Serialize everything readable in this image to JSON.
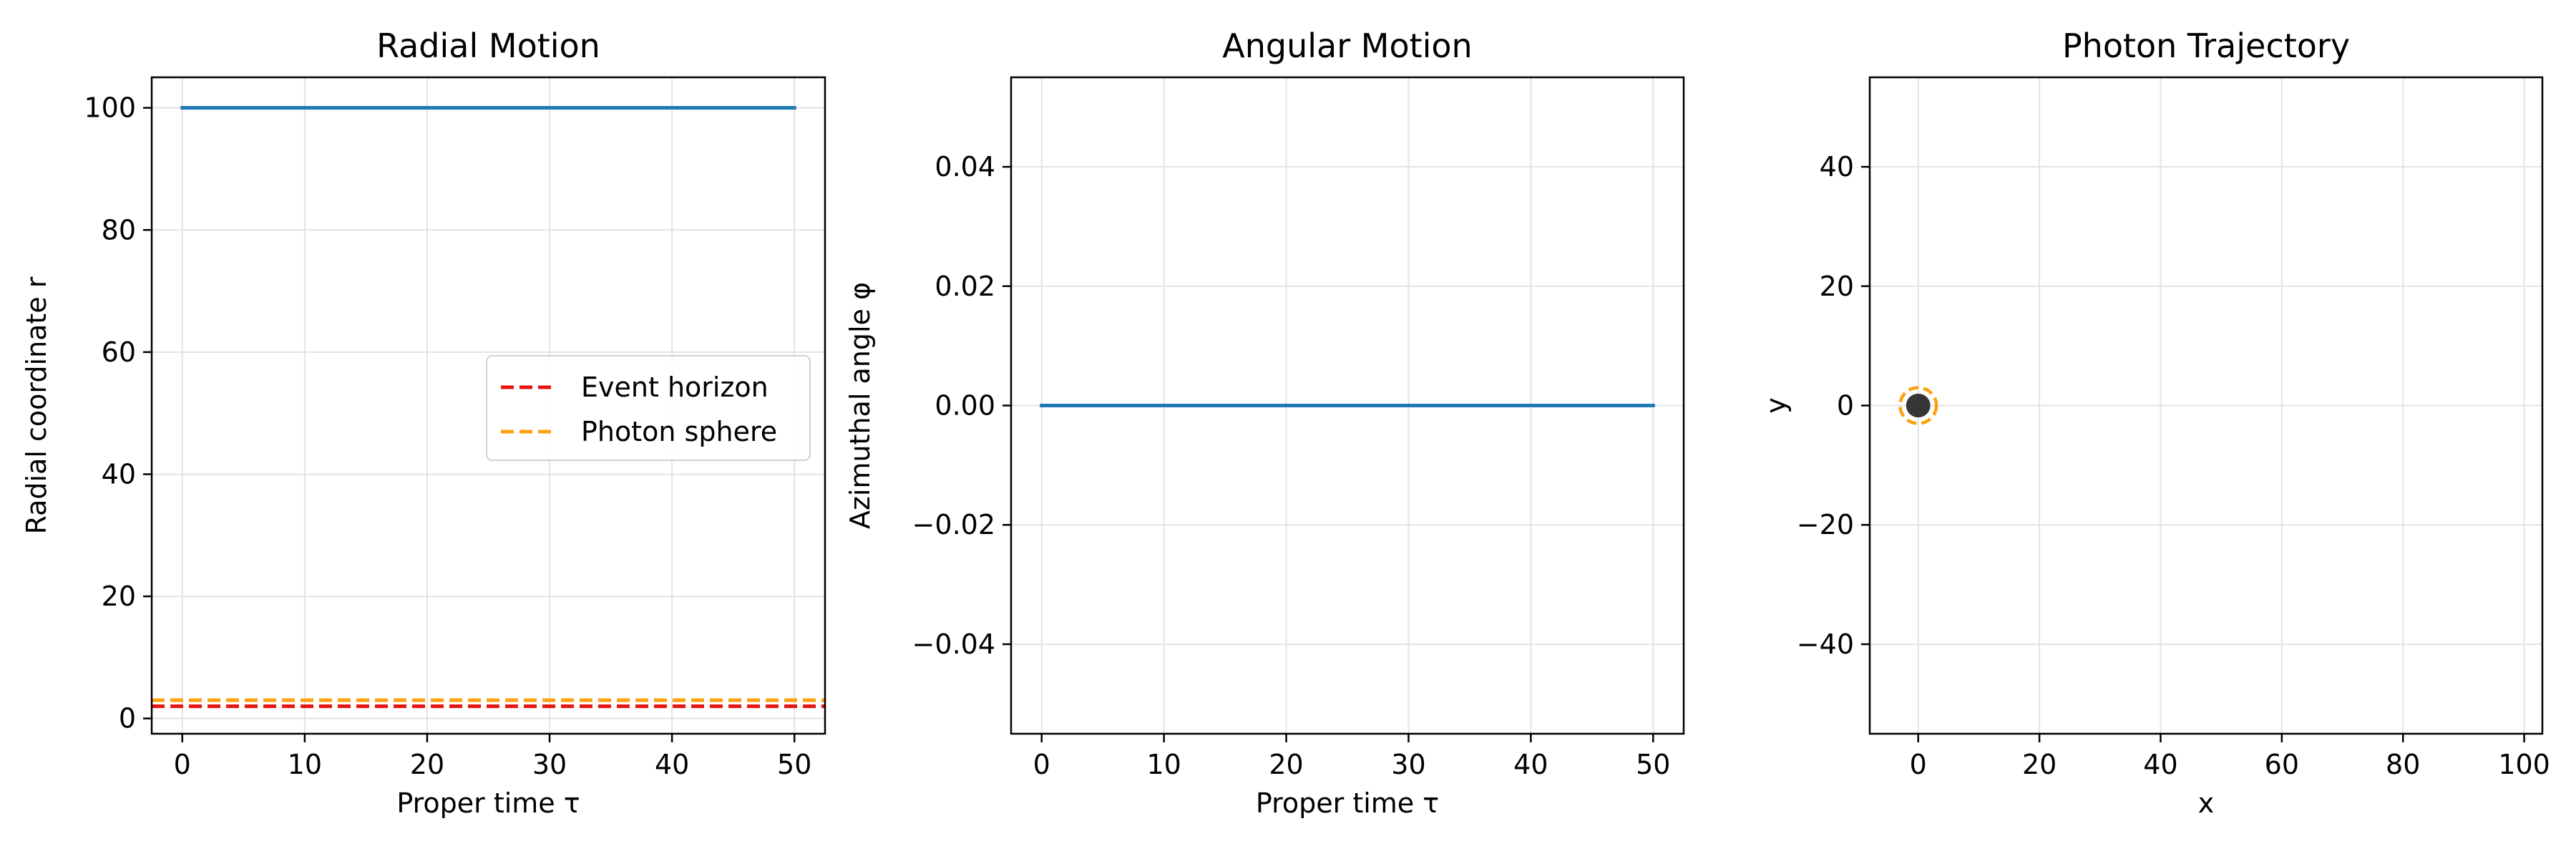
{
  "colors": {
    "series": "#1f77b4",
    "event_horizon": "#e8130f",
    "photon_sphere": "#ffa010",
    "grid": "#e3e3e3",
    "black_hole": "#2b2b2b"
  },
  "chart_data": [
    {
      "type": "line",
      "title": "Radial Motion",
      "xlabel": "Proper time τ",
      "ylabel": "Radial coordinate r",
      "xlim": [
        -2.5,
        52.5
      ],
      "ylim": [
        -2.5,
        105
      ],
      "xticks": [
        0,
        10,
        20,
        30,
        40,
        50
      ],
      "xtick_labels": [
        "0",
        "10",
        "20",
        "30",
        "40",
        "50"
      ],
      "yticks": [
        0,
        20,
        40,
        60,
        80,
        100
      ],
      "ytick_labels": [
        "0",
        "20",
        "40",
        "60",
        "80",
        "100"
      ],
      "grid": true,
      "legend": {
        "placement": "center-right",
        "entries": [
          "Event horizon",
          "Photon sphere"
        ]
      },
      "series": [
        {
          "x": [
            0,
            50
          ],
          "y": [
            100,
            100
          ],
          "style": "solid",
          "color": "#1f77b4"
        }
      ],
      "hlines": [
        {
          "name": "Event horizon",
          "y": 2,
          "style": "dashed",
          "color": "#e8130f"
        },
        {
          "name": "Photon sphere",
          "y": 3,
          "style": "dashed",
          "color": "#ffa010"
        }
      ]
    },
    {
      "type": "line",
      "title": "Angular Motion",
      "xlabel": "Proper time τ",
      "ylabel": "Azimuthal angle φ",
      "xlim": [
        -2.5,
        52.5
      ],
      "ylim": [
        -0.055,
        0.055
      ],
      "xticks": [
        0,
        10,
        20,
        30,
        40,
        50
      ],
      "xtick_labels": [
        "0",
        "10",
        "20",
        "30",
        "40",
        "50"
      ],
      "yticks": [
        -0.04,
        -0.02,
        0,
        0.02,
        0.04
      ],
      "ytick_labels": [
        "−0.04",
        "−0.02",
        "0.00",
        "0.02",
        "0.04"
      ],
      "grid": true,
      "series": [
        {
          "x": [
            0,
            50
          ],
          "y": [
            0,
            0
          ],
          "style": "solid",
          "color": "#1f77b4"
        }
      ]
    },
    {
      "type": "line",
      "title": "Photon Trajectory",
      "xlabel": "x",
      "ylabel": "y",
      "xlim": [
        -8,
        103
      ],
      "ylim": [
        -55,
        55
      ],
      "xticks": [
        0,
        20,
        40,
        60,
        80,
        100
      ],
      "xtick_labels": [
        "0",
        "20",
        "40",
        "60",
        "80",
        "100"
      ],
      "yticks": [
        -40,
        -20,
        0,
        20,
        40
      ],
      "ytick_labels": [
        "−40",
        "−20",
        "0",
        "20",
        "40"
      ],
      "grid": true,
      "series": [],
      "circles": [
        {
          "name": "black hole",
          "r": 2,
          "fill": true,
          "color": "#2b2b2b"
        },
        {
          "name": "photon sphere",
          "r": 3,
          "fill": false,
          "style": "dashed",
          "color": "#ffa010"
        }
      ]
    }
  ]
}
